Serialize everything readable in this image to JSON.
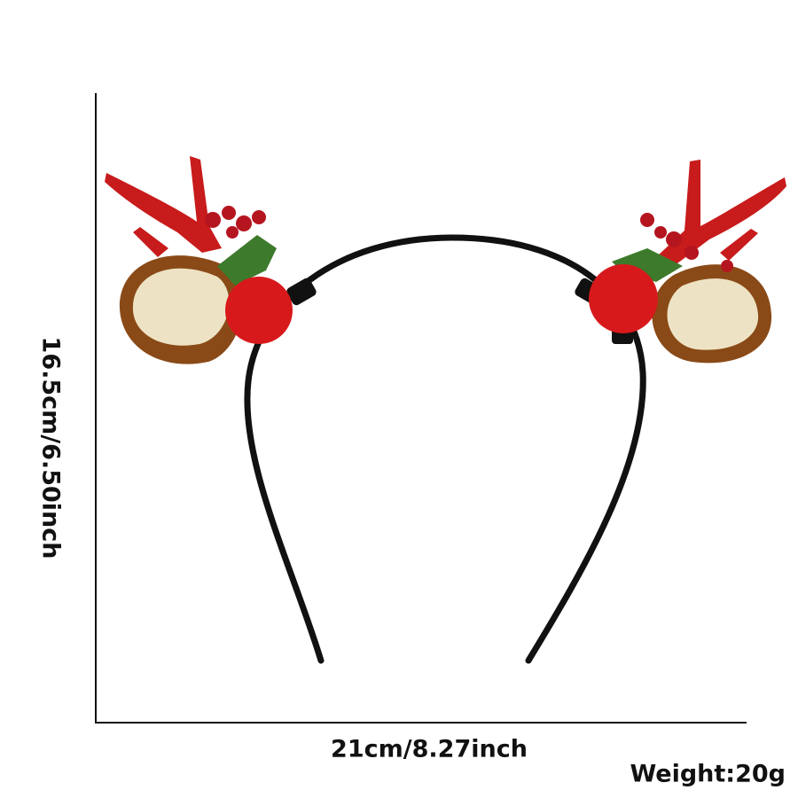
{
  "dimensions": {
    "height_label": "16.5cm/6.50inch",
    "width_label": "21cm/8.27inch",
    "weight_label": "Weight:20g"
  },
  "product": {
    "name_icon": "reindeer-antler-headband",
    "colors": {
      "band": "#111111",
      "antler": "#c81b1b",
      "ear_outer": "#8a4a17",
      "ear_inner": "#ede3c4",
      "pompom": "#d8191b",
      "leaf": "#3d7a2c"
    }
  }
}
